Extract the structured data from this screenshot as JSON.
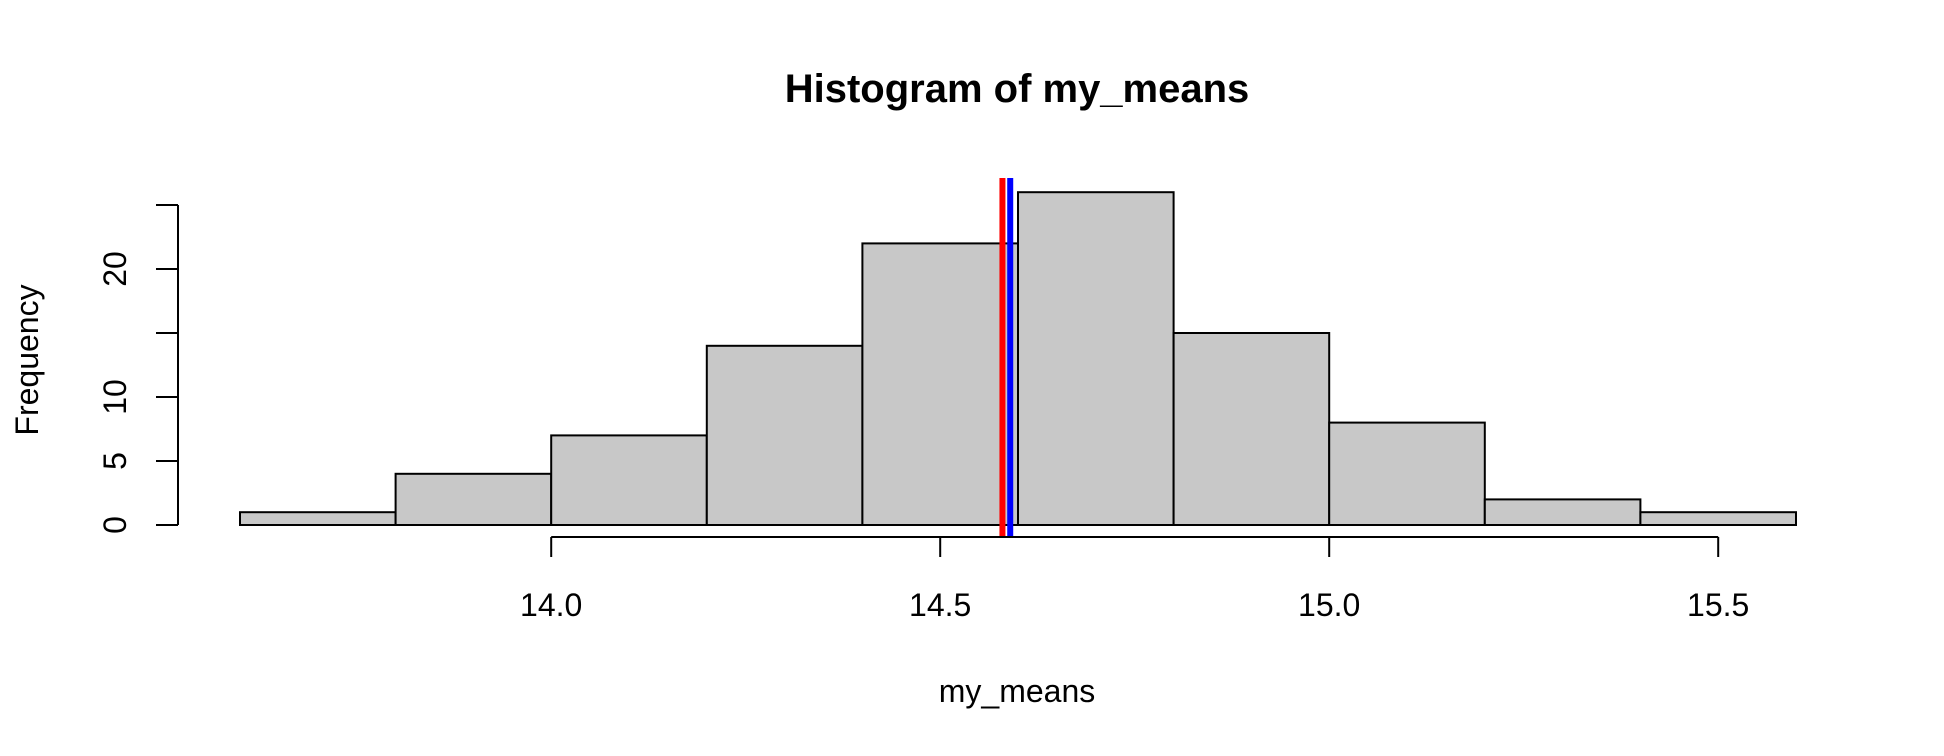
{
  "chart_data": {
    "type": "bar",
    "title": "Histogram of my_means",
    "xlabel": "my_means",
    "ylabel": "Frequency",
    "bar_color": "#c8c8c8",
    "bins": [
      {
        "from": 13.6,
        "to": 13.8,
        "count": 1
      },
      {
        "from": 13.8,
        "to": 14.0,
        "count": 4
      },
      {
        "from": 14.0,
        "to": 14.2,
        "count": 7
      },
      {
        "from": 14.2,
        "to": 14.4,
        "count": 14
      },
      {
        "from": 14.4,
        "to": 14.6,
        "count": 22
      },
      {
        "from": 14.6,
        "to": 14.8,
        "count": 26
      },
      {
        "from": 14.8,
        "to": 15.0,
        "count": 15
      },
      {
        "from": 15.0,
        "to": 15.2,
        "count": 8
      },
      {
        "from": 15.2,
        "to": 15.4,
        "count": 2
      },
      {
        "from": 15.4,
        "to": 15.6,
        "count": 1
      }
    ],
    "x_ticks": [
      "14.0",
      "14.5",
      "15.0",
      "15.5"
    ],
    "y_ticks": [
      "0",
      "5",
      "10",
      "15",
      "20",
      "25"
    ],
    "y_tick_labels_shown": [
      "0",
      "5",
      "10",
      "",
      "20",
      ""
    ],
    "xlim": [
      13.6,
      15.6
    ],
    "ylim": [
      0,
      26
    ],
    "vlines": [
      {
        "x": 14.58,
        "color": "#ff0000"
      },
      {
        "x": 14.59,
        "color": "#0000ff"
      }
    ],
    "grid": false
  }
}
